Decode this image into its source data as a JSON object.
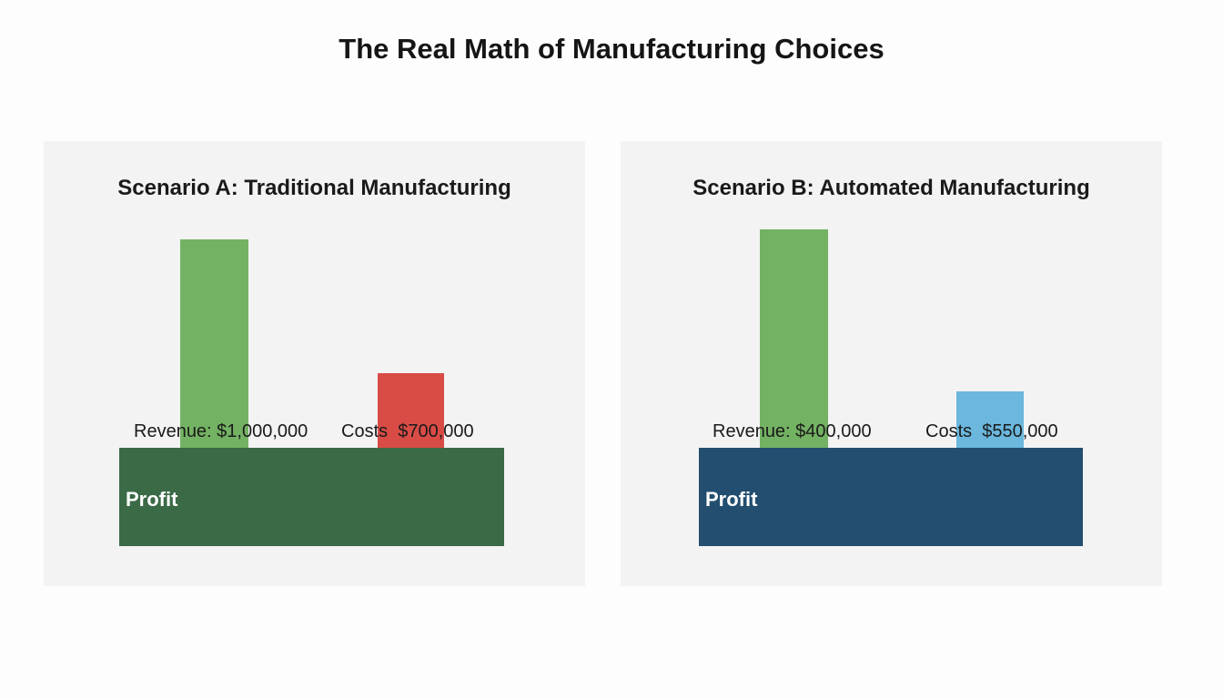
{
  "title": "The Real Math of Manufacturing Choices",
  "chart_data": [
    {
      "type": "bar",
      "title": "Scenario A: Traditional Manufacturing",
      "categories": [
        "Revenue",
        "Costs"
      ],
      "labels": [
        "Revenue: $1,000,000",
        "Costs  $700,000"
      ],
      "values": [
        1000000,
        700000
      ],
      "colors": [
        "#74b263",
        "#d94c46"
      ],
      "profit_label": "Profit",
      "profit_color": "#3b6a46"
    },
    {
      "type": "bar",
      "title": "Scenario B: Automated Manufacturing",
      "categories": [
        "Revenue",
        "Costs"
      ],
      "labels": [
        "Revenue: $400,000",
        "Costs  $550,000"
      ],
      "values": [
        400000,
        550000
      ],
      "colors": [
        "#74b263",
        "#6bb7dd"
      ],
      "profit_label": "Profit",
      "profit_color": "#234e6f"
    }
  ]
}
